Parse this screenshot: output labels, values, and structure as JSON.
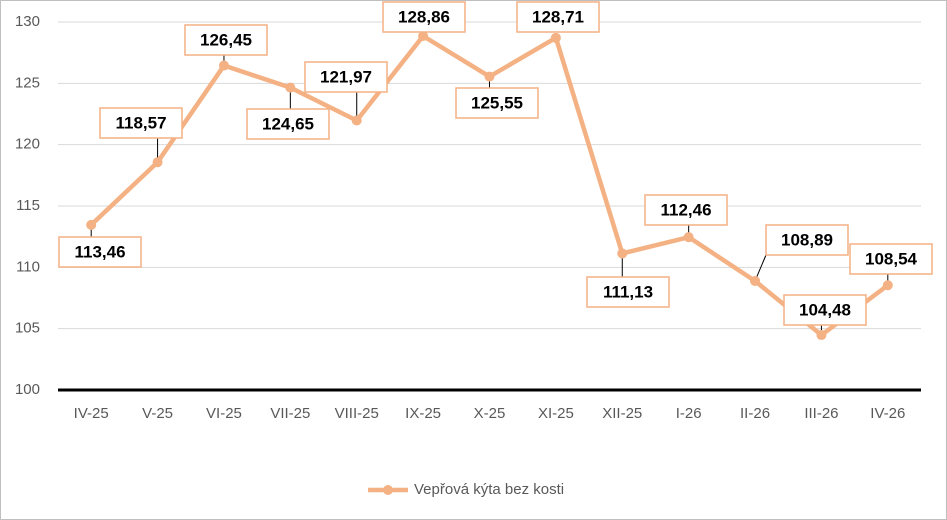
{
  "chart_data": {
    "type": "line",
    "categories": [
      "IV-25",
      "V-25",
      "VI-25",
      "VII-25",
      "VIII-25",
      "IX-25",
      "X-25",
      "XI-25",
      "XII-25",
      "I-26",
      "II-26",
      "III-26",
      "IV-26"
    ],
    "series": [
      {
        "name": "Vepřová kýta bez kosti",
        "color": "#f4b183",
        "values": [
          113.46,
          118.57,
          126.45,
          124.65,
          121.97,
          128.86,
          125.55,
          128.71,
          111.13,
          112.46,
          108.89,
          104.48,
          108.54
        ],
        "value_labels": [
          "113,46",
          "118,57",
          "126,45",
          "124,65",
          "121,97",
          "128,86",
          "125,55",
          "128,71",
          "111,13",
          "112,46",
          "108,89",
          "104,48",
          "108,54"
        ]
      }
    ],
    "ylim": [
      100,
      130
    ],
    "yticks": [
      100,
      105,
      110,
      115,
      120,
      125,
      130
    ],
    "grid": true,
    "legend": "bottom"
  }
}
